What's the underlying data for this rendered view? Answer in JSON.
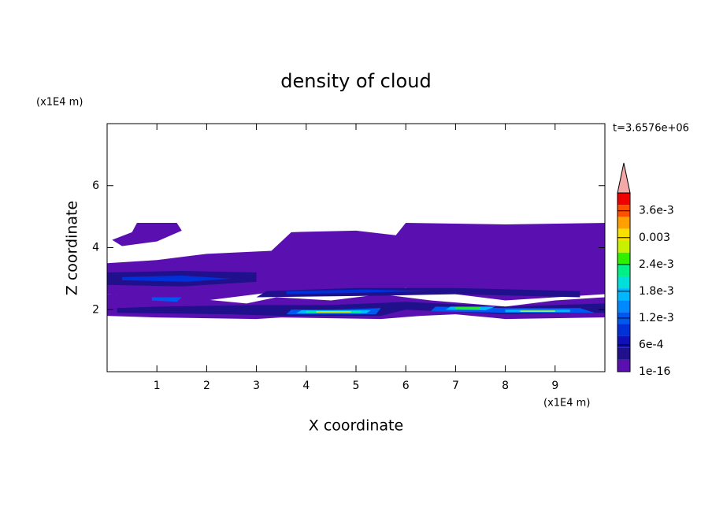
{
  "chart_data": {
    "type": "contour",
    "title": "density of cloud",
    "x_label": "X coordinate",
    "y_label": "Z coordinate",
    "x_unit": "(x1E4 m)",
    "y_unit": "(x1E4 m)",
    "annotation": "t=3.6576e+06",
    "xlim": [
      0,
      10
    ],
    "ylim": [
      0,
      8
    ],
    "xticks": [
      1,
      2,
      3,
      4,
      5,
      6,
      7,
      8,
      9
    ],
    "yticks": [
      2,
      4,
      6
    ],
    "colorbar": {
      "lim": [
        0,
        0.004
      ],
      "colors": [
        "#5a10b0",
        "#20108c",
        "#1010b8",
        "#0030d8",
        "#0058f0",
        "#0088ff",
        "#00b8ff",
        "#00e0d8",
        "#00f088",
        "#30f000",
        "#c8f000",
        "#f8e000",
        "#ffa000",
        "#ff5000",
        "#f00000"
      ],
      "extend_color": "#f4a8a8",
      "ticks": [
        {
          "value": 1e-16,
          "label": "1e-16"
        },
        {
          "value": 0.0006,
          "label": "6e-4"
        },
        {
          "value": 0.0012,
          "label": "1.2e-3"
        },
        {
          "value": 0.0018,
          "label": "1.8e-3"
        },
        {
          "value": 0.0024,
          "label": "2.4e-3"
        },
        0.003,
        {
          "value": 0.0036,
          "label": "3.6e-3"
        }
      ]
    }
  }
}
